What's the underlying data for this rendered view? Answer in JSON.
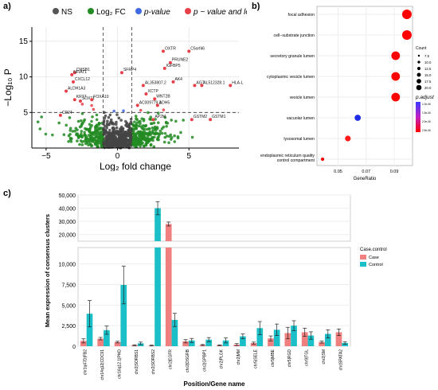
{
  "panel_labels": {
    "a": "a)",
    "b": "b)",
    "c": "c)"
  },
  "chart_data": [
    {
      "type": "scatter",
      "panel": "a",
      "legend": {
        "position": "top",
        "items": [
          {
            "label": "NS",
            "color": "#555555"
          },
          {
            "label": "Log₂ FC",
            "color": "#228B22"
          },
          {
            "label": "p-value",
            "color": "#4169E1"
          },
          {
            "label": "p − value and log₂ FC",
            "color": "#E8404A"
          }
        ]
      },
      "xlabel": "Log₂ fold change",
      "ylabel": "−Log₁₀ P",
      "xlim": [
        -6,
        8.5
      ],
      "ylim": [
        0,
        17
      ],
      "xticks": [
        -5,
        0,
        5
      ],
      "yticks": [
        5,
        10,
        15
      ],
      "vlines": [
        -1,
        1
      ],
      "hline": 5,
      "grid": true,
      "annotations": [
        {
          "label": "OXTR",
          "x": 3.2,
          "y": 13.6
        },
        {
          "label": "C5orf46",
          "x": 5.0,
          "y": 13.6
        },
        {
          "label": "PRUNE2",
          "x": 3.7,
          "y": 12.0
        },
        {
          "label": "IGFBP5",
          "x": 3.3,
          "y": 11.2
        },
        {
          "label": "AK4",
          "x": 3.9,
          "y": 9.3
        },
        {
          "label": "AGT",
          "x": 5.4,
          "y": 8.8
        },
        {
          "label": "AL512328.1",
          "x": 5.9,
          "y": 8.8
        },
        {
          "label": "HLA-L",
          "x": 7.9,
          "y": 8.8
        },
        {
          "label": "AL353807.2",
          "x": 1.8,
          "y": 8.8
        },
        {
          "label": "XCTP",
          "x": 2.0,
          "y": 7.6
        },
        {
          "label": "WNT2B",
          "x": 2.6,
          "y": 6.9
        },
        {
          "label": "AC009779.3",
          "x": 1.4,
          "y": 6.0
        },
        {
          "label": "ADH5",
          "x": 2.8,
          "y": 6.0
        },
        {
          "label": "AP2M",
          "x": 2.5,
          "y": 4.0
        },
        {
          "label": "GSTM2",
          "x": 5.2,
          "y": 4.0
        },
        {
          "label": "GSTM1",
          "x": 6.5,
          "y": 4.0
        },
        {
          "label": "CMSB1",
          "x": -3.0,
          "y": 10.6
        },
        {
          "label": "NFIAT1",
          "x": -3.2,
          "y": 10.3
        },
        {
          "label": "CXCL12",
          "x": -3.1,
          "y": 9.3
        },
        {
          "label": "ALDH1A3",
          "x": -3.6,
          "y": 8.0
        },
        {
          "label": "SOX11",
          "x": -2.6,
          "y": 6.6
        },
        {
          "label": "KRT7",
          "x": -3.0,
          "y": 6.8
        },
        {
          "label": "CD24",
          "x": -4.0,
          "y": 4.6
        },
        {
          "label": "FOXA10",
          "x": -1.8,
          "y": 6.8
        },
        {
          "label": "SFRP4",
          "x": 0.3,
          "y": 10.6
        }
      ]
    },
    {
      "type": "scatter",
      "panel": "b",
      "xlabel": "GeneRatio",
      "ylabel": "",
      "xlim": [
        0.035,
        0.103
      ],
      "xticks": [
        0.05,
        0.07,
        0.09
      ],
      "categories": [
        "focal adhesion",
        "cell−substrate junction",
        "secretory granule lumen",
        "cytoplasmic vesicle lumen",
        "vesicle lumen",
        "vacuolar lumen",
        "lysosomal lumen",
        "endoplasmic reticulum quality control compartment"
      ],
      "points": [
        {
          "term": "focal adhesion",
          "x": 0.099,
          "count": 20,
          "color": "#FF0000"
        },
        {
          "term": "cell−substrate junction",
          "x": 0.099,
          "count": 20,
          "color": "#FF0000"
        },
        {
          "term": "secretory granule lumen",
          "x": 0.091,
          "count": 18,
          "color": "#FF0000"
        },
        {
          "term": "cytoplasmic vesicle lumen",
          "x": 0.091,
          "count": 18,
          "color": "#FF0000"
        },
        {
          "term": "vesicle lumen",
          "x": 0.091,
          "count": 18,
          "color": "#FF0000"
        },
        {
          "term": "vacuolar lumen",
          "x": 0.064,
          "count": 13,
          "color": "#1F2EE6"
        },
        {
          "term": "lysosomal lumen",
          "x": 0.057,
          "count": 12,
          "color": "#FF1A1A"
        },
        {
          "term": "endoplasmic reticulum quality control compartment",
          "x": 0.039,
          "count": 7,
          "color": "#FF0000"
        }
      ],
      "size_legend": {
        "title": "Count",
        "values": [
          7.5,
          10.0,
          12.5,
          15.0,
          17.5,
          20.0
        ]
      },
      "color_legend": {
        "title": "p.adjust",
        "labels": [
          "1.0e-06",
          "1.5e-06",
          "2.0e-06",
          "2.5e-06"
        ]
      },
      "grid": true
    },
    {
      "type": "bar",
      "panel": "c",
      "xlabel": "Position/Gene name",
      "ylabel": "Mean expression of consensus clusters",
      "categories": [
        "chr1q47D|FB2",
        "chr14q12|CDC91",
        "chr16q12.1|PHD",
        "chr2|SORBS1",
        "chr2|SORBS2",
        "chr2|EGFR",
        "chr2|DSGRB",
        "chr2|GPBP1",
        "chr2|PLGK",
        "chr2|MM",
        "chr5|SELE",
        "chr5|MBE",
        "chr5|RGD",
        "chr9|TGL",
        "chr2|SM",
        "chr|SPATA2"
      ],
      "series": [
        {
          "name": "Case",
          "color": "#F08080",
          "values": [
            650,
            920,
            500,
            120,
            80,
            28000,
            600,
            150,
            120,
            200,
            380,
            950,
            1600,
            1700,
            500,
            1700
          ],
          "err": [
            250,
            150,
            100,
            60,
            50,
            1500,
            200,
            60,
            50,
            120,
            120,
            300,
            700,
            500,
            120,
            400
          ]
        },
        {
          "name": "Control",
          "color": "#1ABFC8",
          "values": [
            3950,
            1950,
            7450,
            350,
            40000,
            3200,
            700,
            800,
            700,
            1200,
            2200,
            2000,
            2500,
            1300,
            1500,
            400
          ],
          "err": [
            1600,
            500,
            2300,
            150,
            5000,
            800,
            250,
            250,
            300,
            300,
            800,
            700,
            600,
            450,
            500,
            150
          ]
        }
      ],
      "legend": {
        "title": "Case.control",
        "position": "right"
      },
      "yticks_upper": [
        20000,
        30000,
        40000,
        50000
      ],
      "yticks_lower": [
        0,
        2500,
        5000,
        7500,
        10000
      ],
      "upper_ylim": [
        15000,
        50000
      ],
      "lower_ylim": [
        0,
        12000
      ],
      "tick_labels": [
        "50,000",
        "40,000",
        "30,000",
        "20,000",
        "10,000",
        "7,500",
        "5,000",
        "2,500",
        "0"
      ]
    }
  ]
}
